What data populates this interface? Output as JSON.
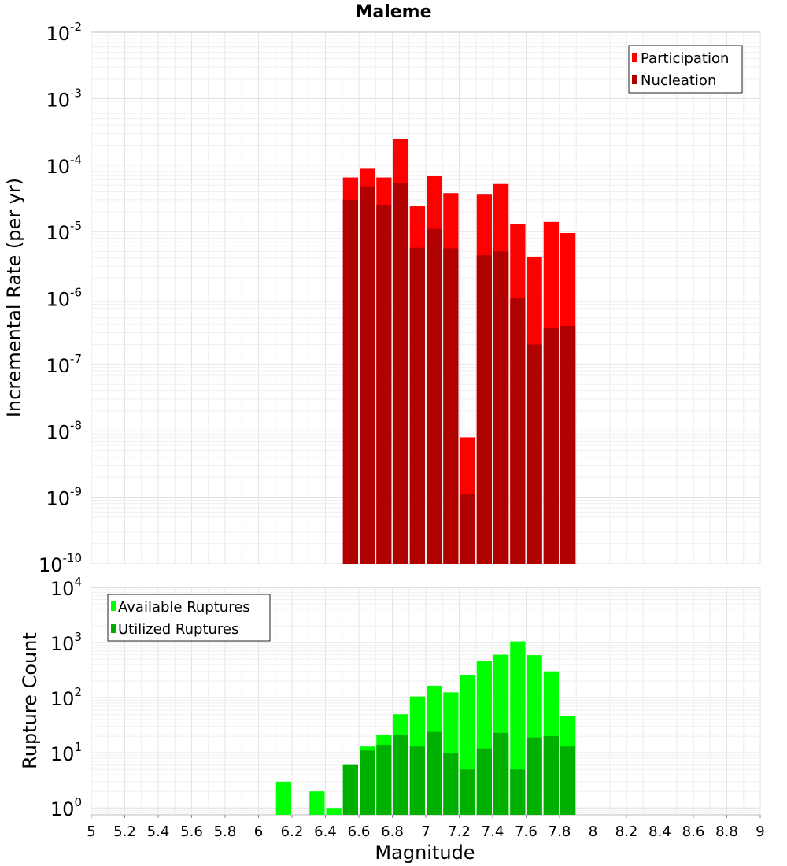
{
  "chart_data": [
    {
      "type": "bar",
      "title": "Maleme",
      "ylabel": "Incremental Rate (per yr)",
      "xlabel": "",
      "yscale": "log",
      "ylim": [
        1e-10,
        0.01
      ],
      "xlim": [
        5,
        9
      ],
      "grid": true,
      "legend_position": "top-right",
      "bar_width": 0.1,
      "x": [
        6.55,
        6.65,
        6.75,
        6.85,
        6.95,
        7.05,
        7.15,
        7.25,
        7.35,
        7.45,
        7.55,
        7.65,
        7.75,
        7.85
      ],
      "series": [
        {
          "name": "Participation",
          "color": "#ff0000",
          "values": [
            6.5e-05,
            8.8e-05,
            6.5e-05,
            0.00025,
            2.4e-05,
            6.9e-05,
            3.8e-05,
            8e-09,
            3.6e-05,
            5.2e-05,
            1.3e-05,
            4.2e-06,
            1.4e-05,
            9.5e-06
          ]
        },
        {
          "name": "Nucleation",
          "color": "#b00000",
          "values": [
            3e-05,
            4.8e-05,
            2.5e-05,
            5.4e-05,
            5.7e-06,
            1.1e-05,
            5.6e-06,
            1.1e-09,
            4.4e-06,
            5e-06,
            1e-06,
            2e-07,
            3.5e-07,
            3.8e-07
          ]
        }
      ]
    },
    {
      "type": "bar",
      "title": "",
      "ylabel": "Rupture Count",
      "xlabel": "Magnitude",
      "yscale": "log",
      "ylim": [
        0.75,
        10000
      ],
      "xlim": [
        5,
        9
      ],
      "grid": true,
      "legend_position": "top-left",
      "bar_width": 0.1,
      "x": [
        6.15,
        6.35,
        6.45,
        6.55,
        6.65,
        6.75,
        6.85,
        6.95,
        7.05,
        7.15,
        7.25,
        7.35,
        7.45,
        7.55,
        7.65,
        7.75,
        7.85
      ],
      "series": [
        {
          "name": "Available Ruptures",
          "color": "#00ff00",
          "values": [
            3,
            2,
            1,
            6,
            13,
            21,
            50,
            105,
            165,
            125,
            260,
            460,
            600,
            1050,
            590,
            300,
            47
          ]
        },
        {
          "name": "Utilized Ruptures",
          "color": "#00b000",
          "values": [
            0,
            0,
            0,
            6,
            11,
            14,
            21,
            13,
            24,
            10,
            5,
            12,
            23,
            5,
            19,
            20,
            13
          ]
        }
      ]
    }
  ],
  "x_ticks": [
    "5",
    "5.2",
    "5.4",
    "5.6",
    "5.8",
    "6",
    "6.2",
    "6.4",
    "6.6",
    "6.8",
    "7",
    "7.2",
    "7.4",
    "7.6",
    "7.8",
    "8",
    "8.2",
    "8.4",
    "8.6",
    "8.8",
    "9"
  ],
  "top_y_ticks": [
    {
      "base": "10",
      "exp": "-10"
    },
    {
      "base": "10",
      "exp": "-9"
    },
    {
      "base": "10",
      "exp": "-8"
    },
    {
      "base": "10",
      "exp": "-7"
    },
    {
      "base": "10",
      "exp": "-6"
    },
    {
      "base": "10",
      "exp": "-5"
    },
    {
      "base": "10",
      "exp": "-4"
    },
    {
      "base": "10",
      "exp": "-3"
    },
    {
      "base": "10",
      "exp": "-2"
    }
  ],
  "bottom_y_ticks": [
    {
      "base": "10",
      "exp": "0"
    },
    {
      "base": "10",
      "exp": "1"
    },
    {
      "base": "10",
      "exp": "2"
    },
    {
      "base": "10",
      "exp": "3"
    },
    {
      "base": "10",
      "exp": "4"
    }
  ]
}
